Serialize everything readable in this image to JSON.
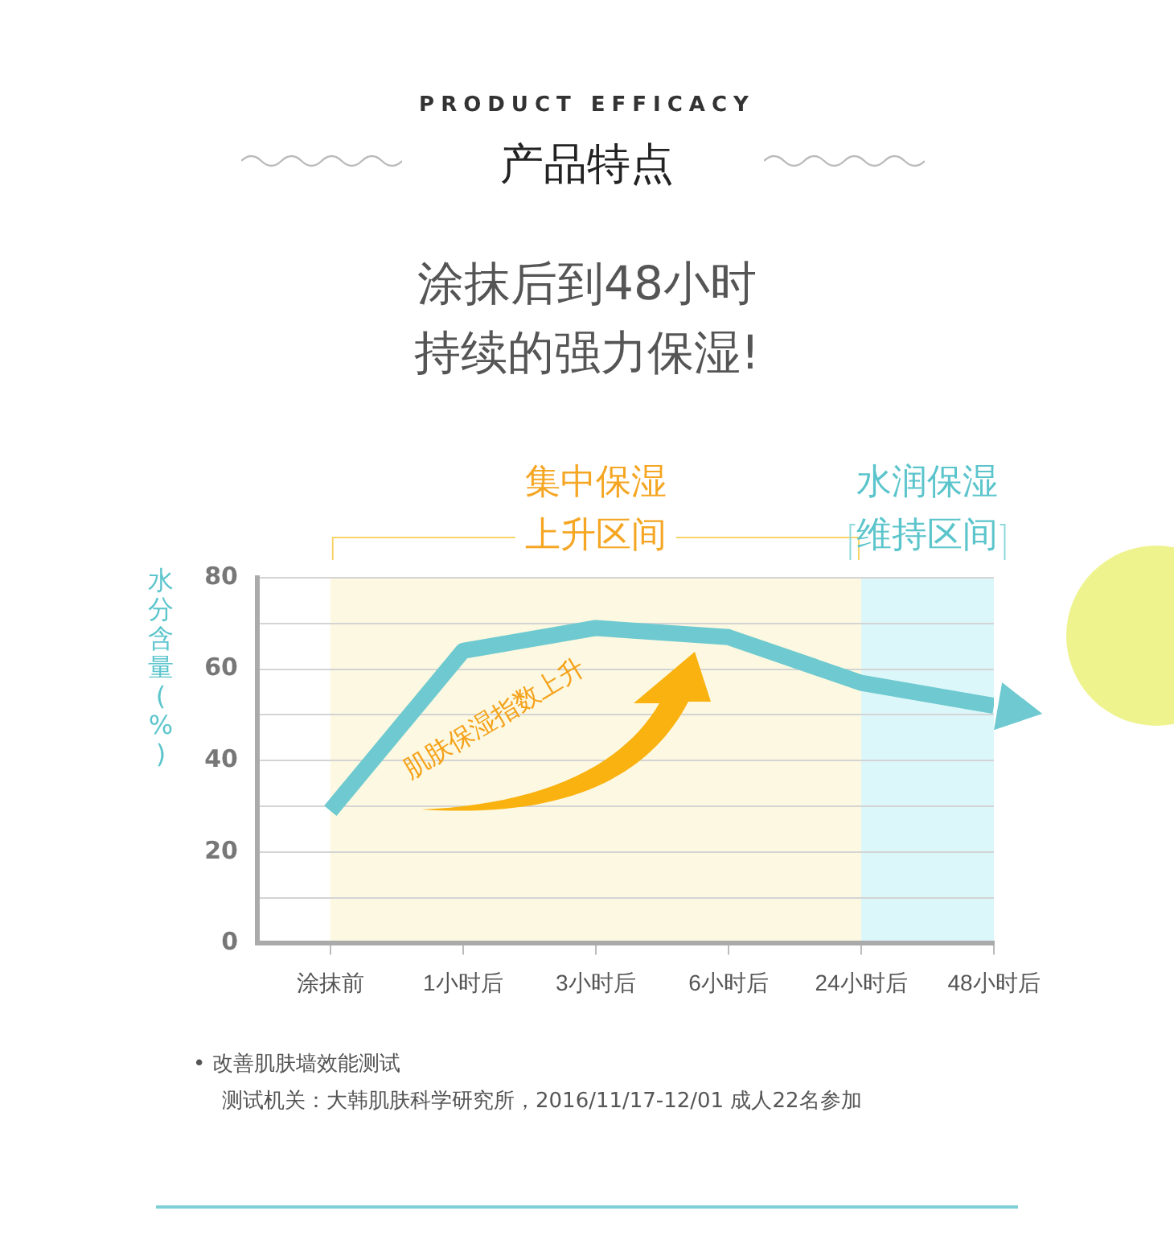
{
  "chart_data": {
    "type": "line",
    "title": "产品特点",
    "subtitle": "涂抹后到48小时持续的强力保湿!",
    "ylabel": "水分含量(%)",
    "categories": [
      "涂抹前",
      "1小时后",
      "3小时后",
      "6小时后",
      "24小时后",
      "48小时后"
    ],
    "series": [
      {
        "color": "#6ecad0",
        "values": [
          29,
          64,
          69,
          67,
          57,
          52
        ]
      }
    ],
    "ylim": [
      0,
      80
    ],
    "yticks": [
      0,
      {
        "value": 10,
        "label": null
      },
      20,
      {
        "value": 30,
        "label": null
      },
      40,
      {
        "value": 50,
        "label": null
      },
      60,
      {
        "value": 70,
        "label": null
      },
      80
    ],
    "grid": "y",
    "legend": false,
    "marker": "none",
    "line_style": "solid",
    "bands": [
      {
        "axis": "x",
        "from": "涂抹前",
        "to": "24小时后",
        "label": "集中保湿上升区间",
        "color": "#fdf8e1"
      },
      {
        "axis": "x",
        "from": "24小时后",
        "to": "48小时后",
        "label": "水润保湿维持区间",
        "color": "#dbf7fa"
      }
    ],
    "annotations": [
      "PRODUCT EFFICACY",
      "肌肤保湿指数上升",
      "• 改善肌肤墙效能测试",
      "测试机关：大韩肌肤科学研究所，2016/11/17-12/01 成人22名参加"
    ]
  }
}
